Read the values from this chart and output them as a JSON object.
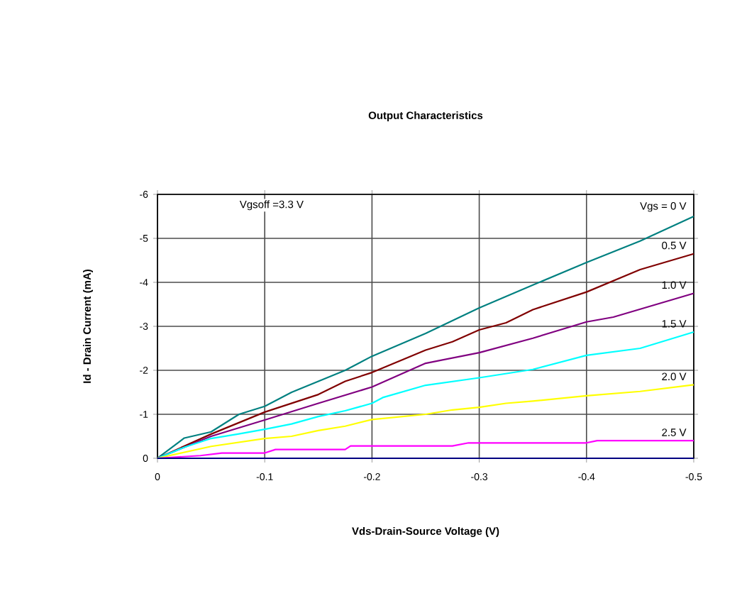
{
  "chart_data": {
    "type": "line",
    "title": "Output Characteristics",
    "xlabel": "Vds-Drain-Source Voltage (V)",
    "ylabel": "Id - Drain Current (mA)",
    "annotations": [
      "Vgsoff =3.3 V"
    ],
    "xlim": [
      0,
      -0.5
    ],
    "xticks": [
      0,
      -0.1,
      -0.2,
      -0.3,
      -0.4,
      -0.5
    ],
    "ylim": [
      0,
      -6
    ],
    "yticks": [
      0,
      -1,
      -2,
      -3,
      -4,
      -5,
      -6
    ],
    "grid": true,
    "series": [
      {
        "name": "Vgs = 0 V",
        "color": "#008080",
        "x": [
          0,
          -0.025,
          -0.05,
          -0.076,
          -0.1,
          -0.125,
          -0.15,
          -0.175,
          -0.2,
          -0.25,
          -0.3,
          -0.35,
          -0.4,
          -0.45,
          -0.5
        ],
        "values": [
          0,
          -0.46,
          -0.6,
          -1.0,
          -1.18,
          -1.5,
          -1.75,
          -2.0,
          -2.32,
          -2.84,
          -3.42,
          -3.94,
          -4.45,
          -4.94,
          -5.5
        ]
      },
      {
        "name": "0.5 V",
        "color": "#800000",
        "x": [
          0,
          -0.05,
          -0.1,
          -0.15,
          -0.175,
          -0.2,
          -0.25,
          -0.275,
          -0.3,
          -0.325,
          -0.35,
          -0.4,
          -0.45,
          -0.5
        ],
        "values": [
          0,
          -0.55,
          -1.05,
          -1.45,
          -1.75,
          -1.95,
          -2.46,
          -2.65,
          -2.92,
          -3.08,
          -3.38,
          -3.78,
          -4.29,
          -4.65
        ]
      },
      {
        "name": "1.0 V",
        "color": "#800080",
        "x": [
          0,
          -0.05,
          -0.1,
          -0.15,
          -0.2,
          -0.25,
          -0.3,
          -0.35,
          -0.4,
          -0.425,
          -0.5
        ],
        "values": [
          0,
          -0.5,
          -0.87,
          -1.25,
          -1.62,
          -2.16,
          -2.4,
          -2.73,
          -3.1,
          -3.21,
          -3.75
        ]
      },
      {
        "name": "1.5 V",
        "color": "#00ffff",
        "x": [
          0,
          -0.025,
          -0.05,
          -0.075,
          -0.1,
          -0.125,
          -0.15,
          -0.175,
          -0.2,
          -0.21,
          -0.25,
          -0.3,
          -0.35,
          -0.4,
          -0.45,
          -0.5
        ],
        "values": [
          0,
          -0.25,
          -0.45,
          -0.55,
          -0.66,
          -0.78,
          -0.95,
          -1.08,
          -1.25,
          -1.38,
          -1.66,
          -1.83,
          -2.02,
          -2.34,
          -2.5,
          -2.87
        ]
      },
      {
        "name": "2.0 V",
        "color": "#ffff00",
        "x": [
          0,
          -0.05,
          -0.1,
          -0.125,
          -0.15,
          -0.175,
          -0.2,
          -0.25,
          -0.275,
          -0.3,
          -0.325,
          -0.35,
          -0.4,
          -0.45,
          -0.5
        ],
        "values": [
          0,
          -0.27,
          -0.45,
          -0.5,
          -0.63,
          -0.73,
          -0.88,
          -1.0,
          -1.1,
          -1.16,
          -1.25,
          -1.3,
          -1.42,
          -1.52,
          -1.67
        ]
      },
      {
        "name": "2.5 V",
        "color": "#ff00ff",
        "x": [
          0,
          -0.04,
          -0.06,
          -0.1,
          -0.11,
          -0.175,
          -0.18,
          -0.275,
          -0.29,
          -0.4,
          -0.41,
          -0.5
        ],
        "values": [
          0,
          -0.06,
          -0.12,
          -0.12,
          -0.2,
          -0.2,
          -0.28,
          -0.28,
          -0.35,
          -0.35,
          -0.4,
          -0.4
        ]
      },
      {
        "color": "#000080",
        "x": [
          0,
          -0.5
        ],
        "values": [
          0,
          0
        ]
      }
    ]
  }
}
